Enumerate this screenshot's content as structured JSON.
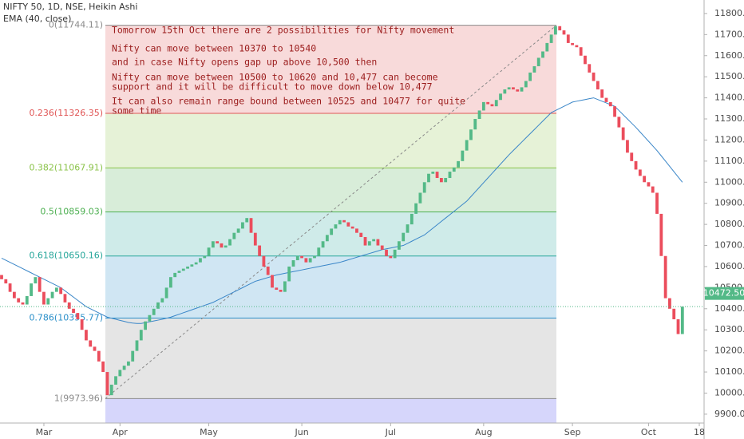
{
  "chart_data": {
    "type": "candlestick",
    "title": "NIFTY 50, 1D, NSE, Heikin Ashi",
    "indicator": "EMA (40, close)",
    "categories": [
      null,
      null,
      null,
      null,
      null,
      null,
      null,
      null,
      null,
      null,
      "Mar",
      null,
      null,
      null,
      null,
      null,
      null,
      null,
      null,
      null,
      null,
      null,
      null,
      null,
      null,
      null,
      null,
      null,
      "Apr",
      null,
      null,
      null,
      null,
      null,
      null,
      null,
      null,
      null,
      null,
      null,
      null,
      null,
      null,
      null,
      null,
      null,
      null,
      null,
      null,
      "May",
      null,
      null,
      null,
      null,
      null,
      null,
      null,
      null,
      null,
      null,
      null,
      null,
      null,
      null,
      null,
      null,
      null,
      null,
      null,
      null,
      null,
      "Jun",
      null,
      null,
      null,
      null,
      null,
      null,
      null,
      null,
      null,
      null,
      null,
      null,
      null,
      null,
      null,
      null,
      null,
      null,
      null,
      null,
      "Jul",
      null,
      null,
      null,
      null,
      null,
      null,
      null,
      null,
      null,
      null,
      null,
      null,
      null,
      null,
      null,
      null,
      null,
      null,
      null,
      null,
      null,
      "Aug",
      null,
      null,
      null,
      null,
      null,
      null,
      null,
      null,
      null,
      null,
      null,
      null,
      null,
      null,
      null,
      null,
      null,
      null,
      null,
      null,
      "Sep",
      null,
      null,
      null,
      null,
      null,
      null,
      null,
      null,
      null,
      null,
      null,
      null,
      null,
      null,
      null,
      null,
      null,
      "Oct",
      null,
      null,
      null,
      null,
      null,
      null,
      null,
      null,
      null,
      null,
      null,
      "18"
    ],
    "open": [
      10560,
      10540,
      10520,
      10480,
      10450,
      10430,
      10420,
      10460,
      10520,
      10550,
      10480,
      10420,
      10450,
      10480,
      10500,
      10470,
      10430,
      10400,
      10380,
      10350,
      10300,
      10250,
      10220,
      10200,
      10150,
      10100,
      9990,
      10040,
      10080,
      10110,
      10130,
      10150,
      10200,
      10250,
      10300,
      10340,
      10370,
      10400,
      10430,
      10450,
      10500,
      10550,
      10570,
      10580,
      10590,
      10600,
      10610,
      10620,
      10640,
      10650,
      10690,
      10720,
      10710,
      10690,
      10700,
      10730,
      10760,
      10780,
      10810,
      10830,
      10760,
      10700,
      10650,
      10600,
      10560,
      10500,
      10490,
      10480,
      10530,
      10600,
      10630,
      10650,
      10640,
      10620,
      10640,
      10650,
      10690,
      10720,
      10750,
      10780,
      10800,
      10820,
      10810,
      10790,
      10780,
      10760,
      10740,
      10700,
      10720,
      10730,
      10700,
      10680,
      10650,
      10640,
      10680,
      10720,
      10760,
      10800,
      10850,
      10900,
      10950,
      11000,
      11040,
      11050,
      11020,
      11000,
      11020,
      11050,
      11070,
      11100,
      11150,
      11200,
      11250,
      11300,
      11340,
      11380,
      11370,
      11360,
      11390,
      11420,
      11440,
      11450,
      11440,
      11430,
      11450,
      11480,
      11520,
      11550,
      11590,
      11620,
      11660,
      11700,
      11740,
      11720,
      11700,
      11660,
      11650,
      11640,
      11600,
      11560,
      11520,
      11480,
      11440,
      11400,
      11380,
      11360,
      11310,
      11260,
      11200,
      11140,
      11100,
      11060,
      11030,
      11000,
      10980,
      10950,
      10850,
      10650,
      10450,
      10400,
      10350,
      10280,
      null,
      null,
      null,
      null
    ],
    "close": [
      10540,
      10520,
      10480,
      10450,
      10430,
      10420,
      10460,
      10520,
      10550,
      10480,
      10420,
      10450,
      10480,
      10500,
      10470,
      10430,
      10400,
      10380,
      10350,
      10300,
      10250,
      10220,
      10200,
      10150,
      10100,
      9990,
      10040,
      10080,
      10110,
      10130,
      10150,
      10200,
      10250,
      10300,
      10340,
      10370,
      10400,
      10430,
      10450,
      10500,
      10550,
      10570,
      10580,
      10590,
      10600,
      10610,
      10620,
      10640,
      10650,
      10690,
      10720,
      10710,
      10690,
      10700,
      10730,
      10760,
      10780,
      10810,
      10830,
      10760,
      10700,
      10650,
      10600,
      10560,
      10500,
      10490,
      10480,
      10530,
      10600,
      10630,
      10650,
      10640,
      10620,
      10640,
      10650,
      10690,
      10720,
      10750,
      10780,
      10800,
      10820,
      10810,
      10790,
      10780,
      10760,
      10740,
      10700,
      10720,
      10730,
      10700,
      10680,
      10650,
      10640,
      10680,
      10720,
      10760,
      10800,
      10850,
      10900,
      10950,
      11000,
      11040,
      11050,
      11020,
      11000,
      11020,
      11050,
      11070,
      11100,
      11150,
      11200,
      11250,
      11300,
      11340,
      11380,
      11370,
      11360,
      11390,
      11420,
      11440,
      11450,
      11440,
      11430,
      11450,
      11480,
      11520,
      11550,
      11590,
      11620,
      11660,
      11700,
      11740,
      11720,
      11700,
      11660,
      11650,
      11640,
      11600,
      11560,
      11520,
      11480,
      11440,
      11400,
      11380,
      11360,
      11310,
      11260,
      11200,
      11140,
      11100,
      11060,
      11030,
      11000,
      10980,
      10950,
      10850,
      10650,
      10450,
      10400,
      10350,
      10280,
      10410,
      null,
      null,
      null,
      null
    ],
    "ema": [
      10640,
      10630,
      10620,
      10610,
      10600,
      10590,
      10580,
      10570,
      10560,
      10550,
      10540,
      10530,
      10520,
      10510,
      10500,
      10485,
      10470,
      10455,
      10440,
      10425,
      10410,
      10400,
      10390,
      10380,
      10370,
      10360,
      10355,
      10350,
      10345,
      10340,
      10335,
      10332,
      10330,
      10330,
      10334,
      10338,
      10342,
      10346,
      10350,
      10355,
      10360,
      10367,
      10374,
      10381,
      10388,
      10395,
      10402,
      10409,
      10416,
      10423,
      10430,
      10440,
      10450,
      10460,
      10470,
      10480,
      10490,
      10500,
      10510,
      10520,
      10530,
      10536,
      10542,
      10548,
      10554,
      10560,
      10564,
      10568,
      10572,
      10576,
      10580,
      10584,
      10588,
      10592,
      10596,
      10600,
      10604,
      10608,
      10612,
      10616,
      10620,
      10626,
      10632,
      10638,
      10644,
      10650,
      10656,
      10662,
      10668,
      10674,
      10680,
      10684,
      10688,
      10692,
      10696,
      10700,
      10710,
      10720,
      10730,
      10740,
      10750,
      10766,
      10782,
      10798,
      10814,
      10830,
      10846,
      10862,
      10878,
      10894,
      10910,
      10932,
      10954,
      10976,
      10998,
      11020,
      11042,
      11064,
      11086,
      11108,
      11130,
      11150,
      11170,
      11190,
      11210,
      11230,
      11250,
      11270,
      11290,
      11310,
      11330,
      11340,
      11350,
      11360,
      11370,
      11380,
      11384,
      11388,
      11392,
      11396,
      11400,
      11392,
      11384,
      11376,
      11368,
      11360,
      11340,
      11320,
      11300,
      11280,
      11260,
      11238,
      11216,
      11194,
      11172,
      11150,
      11125,
      11100,
      11075,
      11050,
      11025,
      11000,
      null,
      null,
      null,
      null
    ],
    "up_color": "#53b987",
    "down_color": "#eb4d5c",
    "ema_color": "#3a86c8",
    "ylim": [
      9858,
      11864
    ],
    "yticks": [
      {
        "value": 9900,
        "label": "9900.00"
      },
      {
        "value": 10000,
        "label": "10000.00"
      },
      {
        "value": 10100,
        "label": "10100.00"
      },
      {
        "value": 10200,
        "label": "10200.00"
      },
      {
        "value": 10300,
        "label": "10300.00"
      },
      {
        "value": 10400,
        "label": "10400.00"
      },
      {
        "value": 10500,
        "label": "10500.00"
      },
      {
        "value": 10600,
        "label": "10600.00"
      },
      {
        "value": 10700,
        "label": "10700.00"
      },
      {
        "value": 10800,
        "label": "10800.00"
      },
      {
        "value": 10900,
        "label": "10900.00"
      },
      {
        "value": 11000,
        "label": "11000.00"
      },
      {
        "value": 11100,
        "label": "11100.00"
      },
      {
        "value": 11200,
        "label": "11200.00"
      },
      {
        "value": 11300,
        "label": "11300.00"
      },
      {
        "value": 11400,
        "label": "11400.00"
      },
      {
        "value": 11500,
        "label": "11500.00"
      },
      {
        "value": 11600,
        "label": "11600.00"
      },
      {
        "value": 11700,
        "label": "11700.00"
      },
      {
        "value": 11800,
        "label": "11800.00"
      }
    ],
    "last_price": {
      "value": 10472.5,
      "label": "10472.50"
    },
    "fib_levels": [
      {
        "value": 11744.11,
        "label": "0(11744.11)",
        "color": "#8a8a8a"
      },
      {
        "value": 11326.35,
        "label": "0.236(11326.35)",
        "color": "#e05555"
      },
      {
        "value": 11067.91,
        "label": "0.382(11067.91)",
        "color": "#8bc34a"
      },
      {
        "value": 10859.03,
        "label": "0.5(10859.03)",
        "color": "#4caf50"
      },
      {
        "value": 10650.16,
        "label": "0.618(10650.16)",
        "color": "#26a69a"
      },
      {
        "value": 10355.77,
        "label": "0.786(10355.77)",
        "color": "#2a8fc9"
      },
      {
        "value": 9973.96,
        "label": "1(9973.96)",
        "color": "#8a8a8a"
      }
    ],
    "fib_below_color": "#6b6bf0",
    "annotations": [
      "Tomorrow 15th Oct there are 2 possibilities for Nifty movement",
      "Nifty can move between 10370 to 10540",
      "and in case Nifty opens gap up above 10,500 then",
      "Nifty can move between 10500 to 10620 and 10,477 can become",
      "support and it will be difficult to move down below 10,477",
      "It can also remain range bound between 10525 and 10477 for quite",
      "some time"
    ]
  }
}
